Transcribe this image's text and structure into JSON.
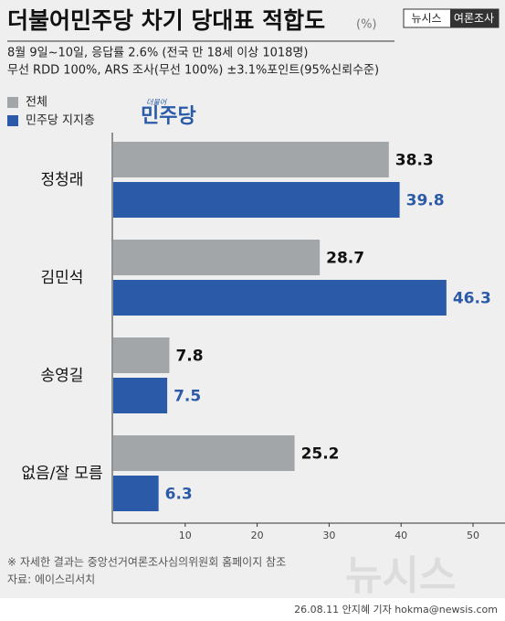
{
  "chart_data": {
    "type": "bar",
    "orientation": "horizontal",
    "title": "더불어민주당 차기 당대표 적합도",
    "unit": "(%)",
    "badge": [
      "뉴시스",
      "여론조사"
    ],
    "subtitle": [
      "8월 9일~10일, 응답률 2.6% (전국 만 18세 이상 1018명)",
      "무선 RDD 100%, ARS 조사(무선 100%) ±3.1%포인트(95%신뢰수준)"
    ],
    "logo": [
      "더불어",
      "민주당"
    ],
    "categories": [
      "정청래",
      "김민석",
      "송영길",
      "없음/잘 모름"
    ],
    "series": [
      {
        "name": "전체",
        "color": "#a3a6a9",
        "label_color": "#111111",
        "values": [
          38.3,
          28.7,
          7.8,
          25.2
        ]
      },
      {
        "name": "민주당 지지층",
        "color": "#2b5ba8",
        "label_color": "#2b5ba8",
        "values": [
          39.8,
          46.3,
          7.5,
          6.3
        ]
      }
    ],
    "xlim": [
      0,
      50
    ],
    "xticks": [
      10,
      20,
      30,
      40,
      50
    ],
    "footnote": "※ 자세한 결과는 중앙선거여론조사심의위원회 홈페이지 참조",
    "source": "자료: 에이스리서치",
    "credit": "26.08.11 안지혜 기자 hokma@newsis.com",
    "watermark": "뉴시스"
  }
}
